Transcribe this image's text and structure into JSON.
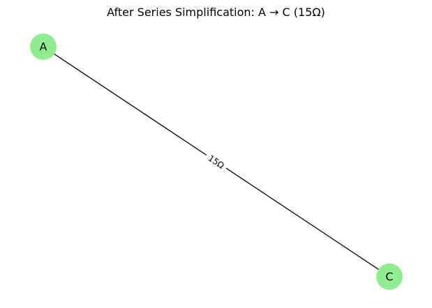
{
  "title": "After Series Simplification: A → C (15Ω)",
  "nodes": [
    {
      "id": "A",
      "label": "A"
    },
    {
      "id": "C",
      "label": "C"
    }
  ],
  "edges": [
    {
      "from": "A",
      "to": "C",
      "label": "15Ω"
    }
  ],
  "colors": {
    "node_fill": "#90ee90",
    "edge": "#000000",
    "text": "#000000",
    "background": "#ffffff"
  }
}
